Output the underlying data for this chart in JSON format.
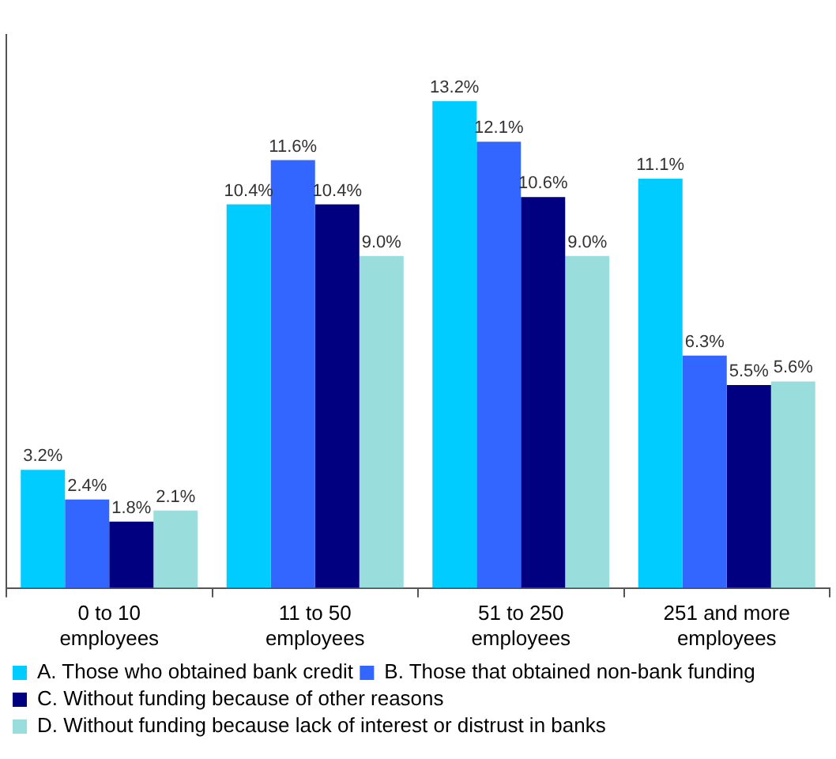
{
  "chart_data": {
    "type": "bar",
    "categories": [
      "0 to 10 employees",
      "11 to 50 employees",
      "51 to 250 employees",
      "251 and more employees"
    ],
    "series": [
      {
        "name": "A. Those who obtained bank credit",
        "color": "#00ccff",
        "values": [
          3.2,
          10.4,
          13.2,
          11.1
        ],
        "value_labels": [
          "3.2%",
          "10.4%",
          "13.2%",
          "11.1%"
        ]
      },
      {
        "name": "B. Those that obtained non-bank funding",
        "color": "#3366ff",
        "values": [
          2.4,
          11.6,
          12.1,
          6.3
        ],
        "value_labels": [
          "2.4%",
          "11.6%",
          "12.1%",
          "6.3%"
        ]
      },
      {
        "name": "C. Without funding because of other reasons",
        "color": "#000080",
        "values": [
          1.8,
          10.4,
          10.6,
          5.5
        ],
        "value_labels": [
          "1.8%",
          "10.4%",
          "10.6%",
          "5.5%"
        ]
      },
      {
        "name": "D. Without funding because lack of interest or distrust in banks",
        "color": "#99dddd",
        "values": [
          2.1,
          9.0,
          9.0,
          5.6
        ],
        "value_labels": [
          "2.1%",
          "9.0%",
          "9.0%",
          "5.6%"
        ]
      }
    ],
    "legend": "bottom",
    "tick_labels": "x"
  }
}
